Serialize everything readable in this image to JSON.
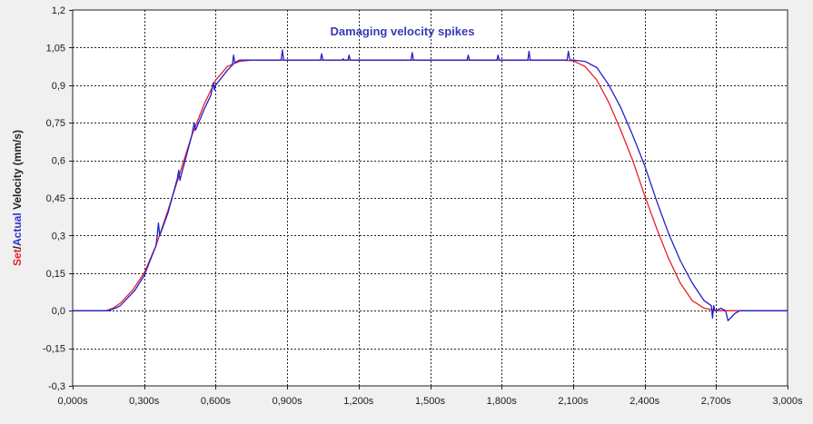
{
  "chart_data": {
    "type": "line",
    "annotation": "Damaging velocity spikes",
    "ylabel_parts": [
      {
        "text": "Set",
        "color": "#e8202a"
      },
      {
        "text": "/",
        "color": "#222222"
      },
      {
        "text": "Actual",
        "color": "#3333cc"
      },
      {
        "text": " Velocity (mm/s)",
        "color": "#222222"
      }
    ],
    "xlim": [
      0,
      3
    ],
    "ylim": [
      -0.3,
      1.2
    ],
    "x_ticks": [
      0,
      0.3,
      0.6,
      0.9,
      1.2,
      1.5,
      1.8,
      2.1,
      2.4,
      2.7,
      3.0
    ],
    "x_tick_labels": [
      "0,000s",
      "0,300s",
      "0,600s",
      "0,900s",
      "1,200s",
      "1,500s",
      "1,800s",
      "2,100s",
      "2,400s",
      "2,700s",
      "3,000s"
    ],
    "y_ticks": [
      1.2,
      1.05,
      0.9,
      0.75,
      0.6,
      0.45,
      0.3,
      0.15,
      0.0,
      -0.15,
      -0.3
    ],
    "y_tick_labels": [
      "1,2",
      "1,05",
      "0,9",
      "0,75",
      "0,6",
      "0,45",
      "0,3",
      "0,15",
      "0,0",
      "-0,15",
      "-0,3"
    ],
    "grid": true,
    "series": [
      {
        "color": "#e8202a",
        "x": [
          0,
          0.14,
          0.17,
          0.2,
          0.25,
          0.3,
          0.35,
          0.4,
          0.45,
          0.5,
          0.55,
          0.6,
          0.65,
          0.7,
          0.75,
          2.05,
          2.1,
          2.15,
          2.2,
          2.25,
          2.3,
          2.35,
          2.4,
          2.45,
          2.5,
          2.55,
          2.6,
          2.65,
          2.7,
          2.75,
          3.0
        ],
        "y": [
          0,
          0,
          0.01,
          0.03,
          0.08,
          0.15,
          0.26,
          0.4,
          0.55,
          0.7,
          0.82,
          0.92,
          0.975,
          0.995,
          1.0,
          1.0,
          0.997,
          0.975,
          0.92,
          0.83,
          0.72,
          0.6,
          0.46,
          0.33,
          0.21,
          0.11,
          0.04,
          0.01,
          0.0,
          0.0,
          0.0
        ]
      },
      {
        "color": "#2020cc",
        "x": [
          0,
          0.15,
          0.18,
          0.2,
          0.24,
          0.25,
          0.26,
          0.3,
          0.35,
          0.355,
          0.36,
          0.365,
          0.4,
          0.44,
          0.445,
          0.45,
          0.455,
          0.5,
          0.51,
          0.515,
          0.52,
          0.55,
          0.58,
          0.59,
          0.595,
          0.6,
          0.65,
          0.67,
          0.675,
          0.68,
          0.7,
          0.75,
          0.875,
          0.88,
          0.885,
          0.89,
          1.04,
          1.045,
          1.05,
          1.13,
          1.135,
          1.14,
          1.155,
          1.16,
          1.165,
          1.42,
          1.425,
          1.43,
          1.655,
          1.66,
          1.665,
          1.78,
          1.785,
          1.79,
          1.91,
          1.915,
          1.92,
          2.075,
          2.08,
          2.085,
          2.09,
          2.1,
          2.15,
          2.2,
          2.25,
          2.3,
          2.35,
          2.4,
          2.45,
          2.5,
          2.55,
          2.6,
          2.65,
          2.68,
          2.685,
          2.69,
          2.695,
          2.7,
          2.72,
          2.74,
          2.75,
          2.76,
          2.78,
          2.8,
          3.0
        ],
        "y": [
          0,
          0,
          0.01,
          0.02,
          0.06,
          0.07,
          0.08,
          0.14,
          0.26,
          0.3,
          0.35,
          0.3,
          0.39,
          0.53,
          0.56,
          0.52,
          0.54,
          0.7,
          0.75,
          0.72,
          0.73,
          0.8,
          0.86,
          0.91,
          0.88,
          0.9,
          0.96,
          0.98,
          1.02,
          0.99,
          1.0,
          1.0,
          1.0,
          1.04,
          1.0,
          1.0,
          1.0,
          1.025,
          1.0,
          1.0,
          1.005,
          1.0,
          1.0,
          1.02,
          1.0,
          1.0,
          1.03,
          1.0,
          1.0,
          1.02,
          1.0,
          1.0,
          1.02,
          1.0,
          1.0,
          1.035,
          1.0,
          1.0,
          1.035,
          1.005,
          1.0,
          1.0,
          0.995,
          0.97,
          0.9,
          0.81,
          0.7,
          0.58,
          0.44,
          0.31,
          0.2,
          0.11,
          0.04,
          0.02,
          -0.03,
          0.02,
          0.0,
          0.0,
          0.01,
          0.0,
          -0.04,
          -0.03,
          -0.01,
          0.0,
          0.0
        ]
      }
    ]
  }
}
